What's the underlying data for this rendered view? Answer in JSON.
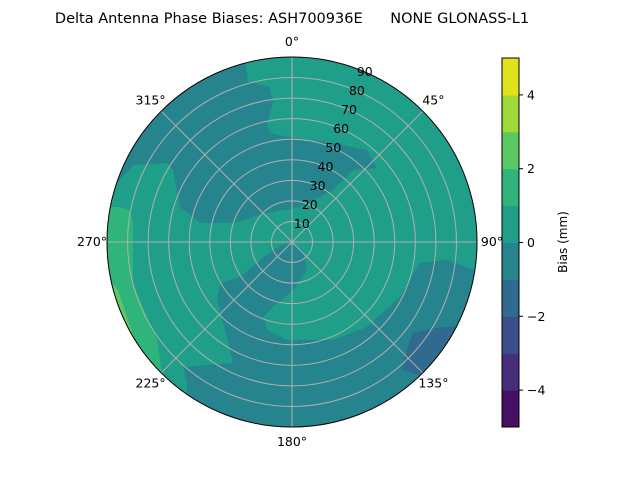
{
  "chart_data": {
    "type": "heatmap",
    "subtype": "polar-filled-contour",
    "title": "Delta Antenna Phase Biases: ASH700936E      NONE GLONASS-L1",
    "angular_ticks": [
      "0°",
      "45°",
      "90°",
      "135°",
      "180°",
      "225°",
      "270°",
      "315°"
    ],
    "radial_ticks": [
      "10",
      "20",
      "30",
      "40",
      "50",
      "60",
      "70",
      "80",
      "90"
    ],
    "radial_range": [
      0,
      90
    ],
    "grid": true,
    "colorbar": {
      "label": "Bias (mm)",
      "range": [
        -5,
        5
      ],
      "levels": [
        -5,
        -4,
        -3,
        -2,
        -1,
        0,
        1,
        2,
        3,
        4,
        5
      ],
      "ticks": [
        -4,
        -2,
        0,
        2,
        4
      ],
      "tick_labels": [
        "−4",
        "−2",
        "0",
        "2",
        "4"
      ],
      "colors": [
        "#450f63",
        "#472d7b",
        "#3b4f8a",
        "#306a8e",
        "#26848e",
        "#1f9e89",
        "#2fb57c",
        "#5cc863",
        "#a0da39",
        "#e0e31b"
      ],
      "colormap": "viridis"
    }
  }
}
